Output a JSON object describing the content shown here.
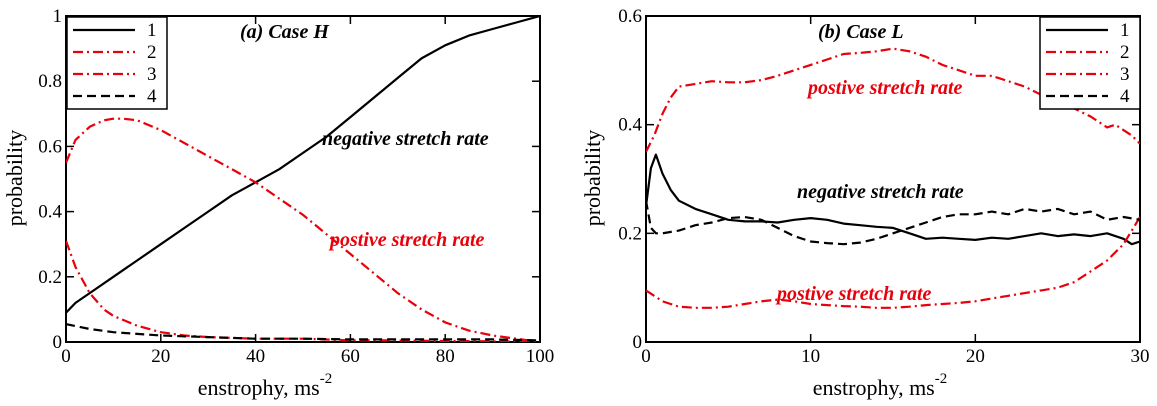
{
  "chart_data": [
    {
      "type": "line",
      "title": "(a) Case H",
      "xlabel": "enstrophy, ms",
      "xlabel_sup": "-2",
      "ylabel": "probability",
      "xlim": [
        0,
        100
      ],
      "ylim": [
        0,
        1
      ],
      "xticks": [
        0,
        20,
        40,
        60,
        80,
        100
      ],
      "yticks": [
        0,
        0.2,
        0.4,
        0.6,
        0.8,
        1
      ],
      "ytick_labels": [
        "0",
        "0.2",
        "0.4",
        "0.6",
        "0.8",
        "1"
      ],
      "legend_position": "top-left",
      "annotations": [
        {
          "text": "negative stretch rate",
          "color": "#000000"
        },
        {
          "text": "postive stretch rate",
          "color": "#e8000b"
        }
      ],
      "series": [
        {
          "name": "1",
          "color": "#000000",
          "dash": "solid",
          "x": [
            0,
            2,
            5,
            10,
            15,
            20,
            25,
            30,
            35,
            40,
            45,
            50,
            55,
            60,
            65,
            70,
            75,
            80,
            85,
            90,
            95,
            100
          ],
          "y": [
            0.09,
            0.12,
            0.15,
            0.2,
            0.25,
            0.3,
            0.35,
            0.4,
            0.45,
            0.49,
            0.53,
            0.58,
            0.63,
            0.69,
            0.75,
            0.81,
            0.87,
            0.91,
            0.94,
            0.96,
            0.98,
            1.0
          ]
        },
        {
          "name": "2",
          "color": "#e8000b",
          "dash": "dashdot",
          "x": [
            0,
            2,
            5,
            8,
            10,
            15,
            20,
            25,
            30,
            40,
            50,
            60,
            70,
            80,
            90,
            100
          ],
          "y": [
            0.31,
            0.23,
            0.15,
            0.1,
            0.08,
            0.05,
            0.03,
            0.02,
            0.015,
            0.01,
            0.01,
            0.005,
            0.005,
            0.003,
            0.002,
            0.0
          ]
        },
        {
          "name": "3",
          "color": "#e8000b",
          "dash": "dashdot",
          "x": [
            0,
            2,
            5,
            8,
            10,
            12,
            15,
            20,
            25,
            30,
            35,
            40,
            45,
            50,
            55,
            60,
            65,
            70,
            75,
            80,
            85,
            90,
            95,
            100
          ],
          "y": [
            0.55,
            0.62,
            0.66,
            0.68,
            0.685,
            0.685,
            0.68,
            0.65,
            0.61,
            0.57,
            0.53,
            0.49,
            0.44,
            0.39,
            0.33,
            0.27,
            0.21,
            0.15,
            0.1,
            0.06,
            0.035,
            0.02,
            0.01,
            0.0
          ]
        },
        {
          "name": "4",
          "color": "#000000",
          "dash": "dashed",
          "x": [
            0,
            5,
            10,
            20,
            30,
            40,
            50,
            60,
            70,
            80,
            90,
            100
          ],
          "y": [
            0.055,
            0.04,
            0.03,
            0.02,
            0.015,
            0.01,
            0.01,
            0.008,
            0.008,
            0.008,
            0.008,
            0.005
          ]
        }
      ]
    },
    {
      "type": "line",
      "title": "(b) Case L",
      "xlabel": "enstrophy, ms",
      "xlabel_sup": "-2",
      "ylabel": "probability",
      "xlim": [
        0,
        30
      ],
      "ylim": [
        0,
        0.6
      ],
      "xticks": [
        0,
        10,
        20,
        30
      ],
      "yticks": [
        0,
        0.2,
        0.4,
        0.6
      ],
      "ytick_labels": [
        "0",
        "0.2",
        "0.4",
        "0.6"
      ],
      "legend_position": "top-right",
      "annotations": [
        {
          "text": "postive stretch rate",
          "color": "#e8000b"
        },
        {
          "text": "negative stretch rate",
          "color": "#000000"
        },
        {
          "text": "postive stretch rate",
          "color": "#e8000b"
        }
      ],
      "series": [
        {
          "name": "1",
          "color": "#000000",
          "dash": "solid",
          "x": [
            0,
            0.3,
            0.6,
            1,
            1.5,
            2,
            3,
            4,
            5,
            6,
            7,
            8,
            9,
            10,
            11,
            12,
            13,
            14,
            15,
            16,
            17,
            18,
            19,
            20,
            21,
            22,
            23,
            24,
            25,
            26,
            27,
            28,
            29,
            29.5,
            30
          ],
          "y": [
            0.25,
            0.32,
            0.345,
            0.31,
            0.28,
            0.26,
            0.245,
            0.235,
            0.225,
            0.222,
            0.222,
            0.22,
            0.225,
            0.228,
            0.225,
            0.218,
            0.215,
            0.212,
            0.21,
            0.2,
            0.19,
            0.192,
            0.19,
            0.188,
            0.192,
            0.19,
            0.195,
            0.2,
            0.195,
            0.198,
            0.195,
            0.2,
            0.19,
            0.18,
            0.185
          ]
        },
        {
          "name": "2",
          "color": "#e8000b",
          "dash": "dashdot",
          "x": [
            0,
            0.5,
            1,
            2,
            3,
            4,
            5,
            6,
            7,
            8,
            9,
            10,
            11,
            12,
            13,
            14,
            15,
            16,
            17,
            18,
            19,
            20,
            21,
            22,
            23,
            24,
            25,
            26,
            27,
            28,
            29,
            30
          ],
          "y": [
            0.095,
            0.085,
            0.075,
            0.065,
            0.063,
            0.063,
            0.065,
            0.07,
            0.075,
            0.078,
            0.075,
            0.07,
            0.068,
            0.066,
            0.065,
            0.063,
            0.063,
            0.065,
            0.068,
            0.07,
            0.072,
            0.075,
            0.08,
            0.085,
            0.09,
            0.095,
            0.1,
            0.11,
            0.13,
            0.15,
            0.18,
            0.23
          ]
        },
        {
          "name": "3",
          "color": "#e8000b",
          "dash": "dashdot",
          "x": [
            0,
            0.5,
            1,
            1.5,
            2,
            3,
            4,
            5,
            6,
            7,
            8,
            9,
            10,
            11,
            12,
            13,
            14,
            15,
            16,
            17,
            18,
            19,
            20,
            21,
            22,
            23,
            24,
            25,
            26,
            27,
            28,
            28.5,
            29,
            29.5,
            30
          ],
          "y": [
            0.35,
            0.38,
            0.42,
            0.45,
            0.47,
            0.475,
            0.48,
            0.478,
            0.478,
            0.482,
            0.49,
            0.5,
            0.51,
            0.52,
            0.53,
            0.532,
            0.535,
            0.54,
            0.535,
            0.525,
            0.51,
            0.5,
            0.49,
            0.49,
            0.48,
            0.47,
            0.455,
            0.445,
            0.43,
            0.415,
            0.395,
            0.4,
            0.39,
            0.38,
            0.365
          ]
        },
        {
          "name": "4",
          "color": "#000000",
          "dash": "dashed",
          "x": [
            0,
            0.3,
            0.6,
            1,
            2,
            3,
            4,
            5,
            6,
            7,
            8,
            9,
            10,
            11,
            12,
            13,
            14,
            15,
            16,
            17,
            18,
            19,
            20,
            21,
            22,
            23,
            24,
            25,
            26,
            27,
            28,
            29,
            30
          ],
          "y": [
            0.26,
            0.21,
            0.2,
            0.2,
            0.205,
            0.215,
            0.22,
            0.228,
            0.23,
            0.225,
            0.21,
            0.195,
            0.185,
            0.182,
            0.18,
            0.183,
            0.19,
            0.2,
            0.21,
            0.22,
            0.23,
            0.235,
            0.235,
            0.24,
            0.235,
            0.245,
            0.24,
            0.245,
            0.235,
            0.24,
            0.225,
            0.23,
            0.225
          ]
        }
      ]
    }
  ]
}
